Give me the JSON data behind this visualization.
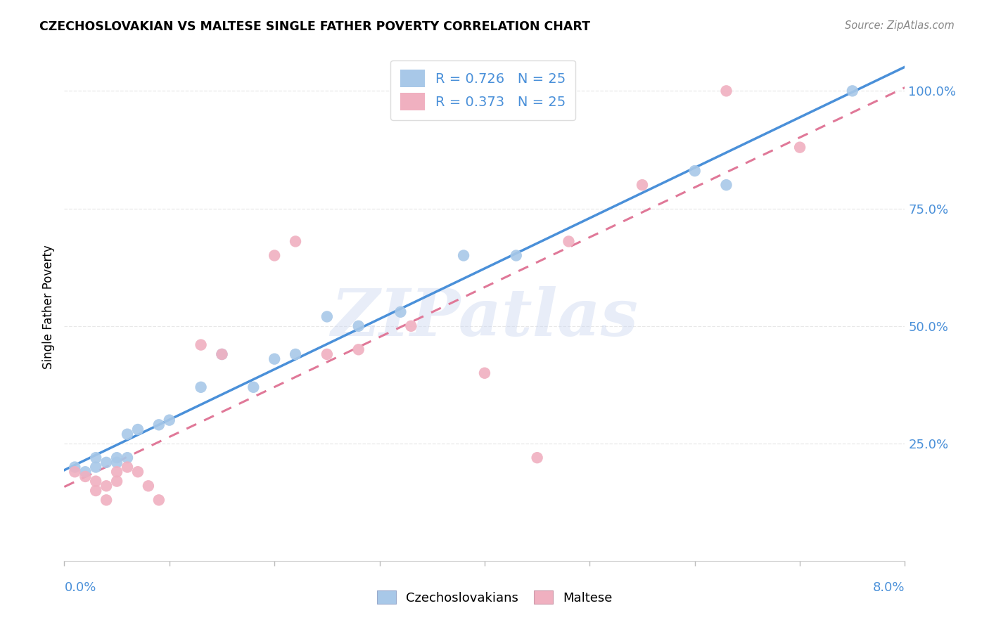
{
  "title": "CZECHOSLOVAKIAN VS MALTESE SINGLE FATHER POVERTY CORRELATION CHART",
  "source": "Source: ZipAtlas.com",
  "ylabel": "Single Father Poverty",
  "xlim": [
    0.0,
    0.08
  ],
  "ylim": [
    0.0,
    1.08
  ],
  "ytick_values": [
    0.25,
    0.5,
    0.75,
    1.0
  ],
  "xtick_values": [
    0.0,
    0.01,
    0.02,
    0.03,
    0.04,
    0.05,
    0.06,
    0.07,
    0.08
  ],
  "legend_r1": "R = 0.726",
  "legend_n1": "N = 25",
  "legend_r2": "R = 0.373",
  "legend_n2": "N = 25",
  "czech_color": "#a8c8e8",
  "maltese_color": "#f0b0c0",
  "czech_line_color": "#4a90d9",
  "maltese_line_color": "#e07898",
  "right_tick_color": "#4a90d9",
  "watermark_text": "ZIPatlas",
  "background_color": "#ffffff",
  "grid_color": "#e8e8e8",
  "czech_x": [
    0.001,
    0.002,
    0.003,
    0.003,
    0.004,
    0.005,
    0.005,
    0.006,
    0.006,
    0.007,
    0.009,
    0.01,
    0.013,
    0.015,
    0.018,
    0.02,
    0.022,
    0.025,
    0.028,
    0.032,
    0.038,
    0.043,
    0.06,
    0.063,
    0.075
  ],
  "czech_y": [
    0.2,
    0.19,
    0.2,
    0.22,
    0.21,
    0.22,
    0.21,
    0.27,
    0.22,
    0.28,
    0.29,
    0.3,
    0.37,
    0.44,
    0.37,
    0.43,
    0.44,
    0.52,
    0.5,
    0.53,
    0.65,
    0.65,
    0.83,
    0.8,
    1.0
  ],
  "maltese_x": [
    0.001,
    0.002,
    0.003,
    0.003,
    0.004,
    0.004,
    0.005,
    0.005,
    0.006,
    0.007,
    0.008,
    0.009,
    0.013,
    0.015,
    0.02,
    0.022,
    0.025,
    0.028,
    0.033,
    0.04,
    0.045,
    0.048,
    0.055,
    0.063,
    0.07
  ],
  "maltese_y": [
    0.19,
    0.18,
    0.15,
    0.17,
    0.13,
    0.16,
    0.19,
    0.17,
    0.2,
    0.19,
    0.16,
    0.13,
    0.46,
    0.44,
    0.65,
    0.68,
    0.44,
    0.45,
    0.5,
    0.4,
    0.22,
    0.68,
    0.8,
    1.0,
    0.88
  ]
}
